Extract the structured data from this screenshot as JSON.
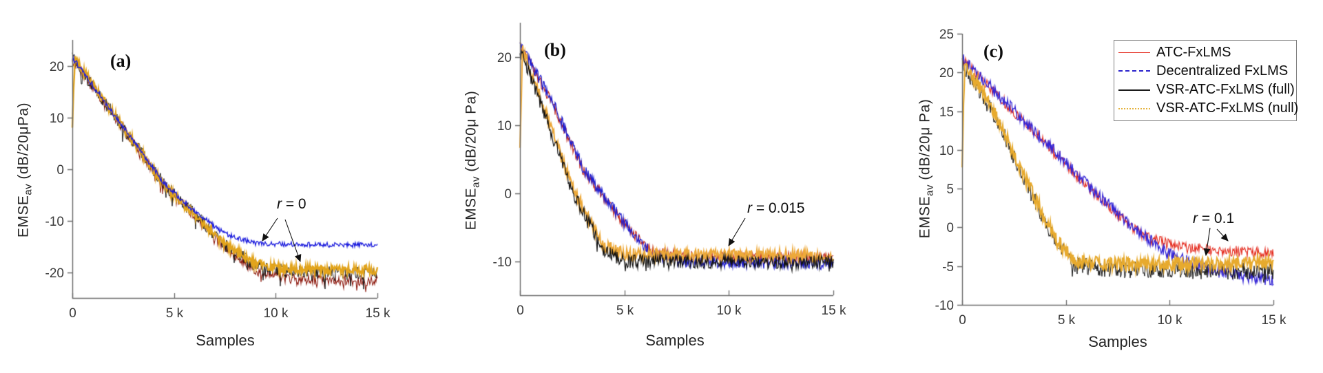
{
  "figure_title": "",
  "chart_data": [
    {
      "type": "line",
      "panel_label": "(a)",
      "xlabel": "Samples",
      "ylabel": "EMSE_av (dB/20μPa)",
      "ylabel_parts": {
        "base": "EMSE",
        "sub": "av",
        "units": " (dB/20μPa)"
      },
      "xlim": [
        0,
        15000
      ],
      "ylim": [
        -25,
        25
      ],
      "x_ticks": [
        {
          "v": 0,
          "label": "0"
        },
        {
          "v": 5000,
          "label": "5 k"
        },
        {
          "v": 10000,
          "label": "10 k"
        },
        {
          "v": 15000,
          "label": "15 k"
        }
      ],
      "y_ticks": [
        {
          "v": 20,
          "label": "20"
        },
        {
          "v": 10,
          "label": "10"
        },
        {
          "v": 0,
          "label": "0"
        },
        {
          "v": -10,
          "label": "-10"
        },
        {
          "v": -20,
          "label": "-20"
        }
      ],
      "annotation": {
        "var": "r",
        "rest": " = 0",
        "full": "r = 0",
        "r_value": 0
      },
      "series": [
        {
          "name": "ATC-FxLMS",
          "color": "#8e1b10",
          "width": 1.1,
          "noise_db": 1.0,
          "spike_db": 1.6,
          "spike_prob": 0.1,
          "z": 1,
          "points": [
            [
              0,
              21.4
            ],
            [
              4500,
              -3.0
            ],
            [
              6000,
              -9.0
            ],
            [
              7500,
              -15.2
            ],
            [
              9000,
              -19.6
            ],
            [
              10500,
              -21.3
            ],
            [
              15000,
              -21.7
            ]
          ]
        },
        {
          "name": "VSR-ATC-FxLMS (full)",
          "color": "#151515",
          "width": 1.0,
          "noise_db": 1.3,
          "spike_db": 2.6,
          "spike_prob": 0.08,
          "z": 2,
          "points": [
            [
              0,
              21.6
            ],
            [
              4500,
              -2.9
            ],
            [
              6000,
              -8.7
            ],
            [
              7500,
              -14.8
            ],
            [
              9000,
              -18.7
            ],
            [
              10500,
              -19.9
            ],
            [
              15000,
              -20.2
            ]
          ]
        },
        {
          "name": "VSR-ATC-FxLMS (null)",
          "color": "#e2a41c",
          "width": 2.4,
          "noise_db": 0.9,
          "spike_db": 0,
          "spike_prob": 0,
          "z": 3,
          "points": [
            [
              0,
              8.0
            ],
            [
              120,
              21.3
            ],
            [
              4500,
              -3.1
            ],
            [
              6000,
              -8.9
            ],
            [
              7500,
              -14.6
            ],
            [
              9000,
              -18.3
            ],
            [
              10500,
              -19.4
            ],
            [
              15000,
              -19.6
            ]
          ]
        },
        {
          "name": "Decentralized FxLMS",
          "color": "#1d1ddd",
          "width": 1.3,
          "noise_db": 0.5,
          "spike_db": 0,
          "spike_prob": 0,
          "z": 4,
          "points": [
            [
              0,
              21.6
            ],
            [
              4500,
              -2.7
            ],
            [
              6000,
              -8.2
            ],
            [
              7500,
              -12.6
            ],
            [
              9000,
              -14.5
            ],
            [
              15000,
              -14.8
            ]
          ]
        }
      ]
    },
    {
      "type": "line",
      "panel_label": "(b)",
      "xlabel": "Samples",
      "ylabel": "EMSE_av (dB/20μ Pa)",
      "ylabel_parts": {
        "base": "EMSE",
        "sub": "av",
        "units": " (dB/20μ Pa)"
      },
      "xlim": [
        0,
        15000
      ],
      "ylim": [
        -15,
        25
      ],
      "x_ticks": [
        {
          "v": 0,
          "label": "0"
        },
        {
          "v": 5000,
          "label": "5 k"
        },
        {
          "v": 10000,
          "label": "10 k"
        },
        {
          "v": 15000,
          "label": "15 k"
        }
      ],
      "y_ticks": [
        {
          "v": 20,
          "label": "20"
        },
        {
          "v": 10,
          "label": "10"
        },
        {
          "v": 0,
          "label": "0"
        },
        {
          "v": -10,
          "label": "-10"
        }
      ],
      "annotation": {
        "var": "r",
        "rest": " = 0.015",
        "full": "r = 0.015",
        "r_value": 0.015
      },
      "series": [
        {
          "name": "ATC-FxLMS",
          "color": "#bf2318",
          "width": 1.1,
          "noise_db": 0.8,
          "spike_db": 0,
          "spike_prob": 0,
          "z": 1,
          "points": [
            [
              0,
              21.6
            ],
            [
              1500,
              13.5
            ],
            [
              3000,
              3.5
            ],
            [
              5000,
              -4.6
            ],
            [
              6300,
              -8.6
            ],
            [
              8000,
              -9.3
            ],
            [
              15000,
              -9.5
            ]
          ]
        },
        {
          "name": "Decentralized FxLMS",
          "color": "#2220cf",
          "width": 1.3,
          "noise_db": 0.85,
          "spike_db": 0,
          "spike_prob": 0,
          "z": 2,
          "points": [
            [
              0,
              21.8
            ],
            [
              1500,
              13.7
            ],
            [
              3000,
              3.8
            ],
            [
              5000,
              -4.4
            ],
            [
              6300,
              -8.9
            ],
            [
              8000,
              -10.1
            ],
            [
              15000,
              -10.4
            ]
          ]
        },
        {
          "name": "VSR-ATC-FxLMS (null)",
          "color": "#eda93a",
          "width": 2.2,
          "noise_db": 0.9,
          "spike_db": 0,
          "spike_prob": 0,
          "z": 3,
          "points": [
            [
              0,
              7.0
            ],
            [
              120,
              21.2
            ],
            [
              1000,
              13.8
            ],
            [
              2500,
              0.8
            ],
            [
              4000,
              -7.6
            ],
            [
              5000,
              -9.0
            ],
            [
              15000,
              -9.2
            ]
          ]
        },
        {
          "name": "VSR-ATC-FxLMS (full)",
          "color": "#101010",
          "width": 1.2,
          "noise_db": 1.0,
          "spike_db": 1.2,
          "spike_prob": 0.05,
          "z": 4,
          "points": [
            [
              0,
              21.3
            ],
            [
              1000,
              13.2
            ],
            [
              2500,
              0.2
            ],
            [
              4000,
              -8.4
            ],
            [
              5000,
              -10.0
            ],
            [
              15000,
              -10.2
            ]
          ]
        }
      ]
    },
    {
      "type": "line",
      "panel_label": "(c)",
      "xlabel": "Samples",
      "ylabel": "EMSE_av (dB/20μ Pa)",
      "ylabel_parts": {
        "base": "EMSE",
        "sub": "av",
        "units": " (dB/20μ Pa)"
      },
      "xlim": [
        0,
        15000
      ],
      "ylim": [
        -10,
        25
      ],
      "x_ticks": [
        {
          "v": 0,
          "label": "0"
        },
        {
          "v": 5000,
          "label": "5 k"
        },
        {
          "v": 10000,
          "label": "10 k"
        },
        {
          "v": 15000,
          "label": "15 k"
        }
      ],
      "y_ticks": [
        {
          "v": 25,
          "label": "25"
        },
        {
          "v": 20,
          "label": "20"
        },
        {
          "v": 15,
          "label": "15"
        },
        {
          "v": 10,
          "label": "10"
        },
        {
          "v": 5,
          "label": "5"
        },
        {
          "v": 0,
          "label": "0"
        },
        {
          "v": -5,
          "label": "-5"
        },
        {
          "v": -10,
          "label": "-10"
        }
      ],
      "annotation": {
        "var": "r",
        "rest": " = 0.1",
        "full": "r = 0.1",
        "r_value": 0.1
      },
      "legend": {
        "position": "top-right",
        "entries": [
          {
            "label": "ATC-FxLMS",
            "color": "#e42a1d",
            "style": "solid",
            "thickness": 1
          },
          {
            "label": "Decentralized FxLMS",
            "color": "#2a22cc",
            "style": "dashed",
            "thickness": 2
          },
          {
            "label": "VSR-ATC-FxLMS (full)",
            "color": "#1a1a1a",
            "style": "solid",
            "thickness": 2
          },
          {
            "label": "VSR-ATC-FxLMS (null)",
            "color": "#e4b23c",
            "style": "dotted",
            "thickness": 2
          }
        ]
      },
      "series": [
        {
          "name": "ATC-FxLMS",
          "color": "#e42a1d",
          "width": 1.1,
          "noise_db": 0.7,
          "spike_db": 0,
          "spike_prob": 0,
          "z": 1,
          "points": [
            [
              0,
              21.6
            ],
            [
              2000,
              16.2
            ],
            [
              4000,
              10.9
            ],
            [
              6000,
              5.4
            ],
            [
              8000,
              0.4
            ],
            [
              9000,
              -1.4
            ],
            [
              10500,
              -2.6
            ],
            [
              12000,
              -2.9
            ],
            [
              15000,
              -3.3
            ]
          ]
        },
        {
          "name": "Decentralized FxLMS",
          "color": "#3526d6",
          "width": 1.3,
          "noise_db": 0.8,
          "spike_db": 0,
          "spike_prob": 0,
          "z": 2,
          "points": [
            [
              0,
              21.9
            ],
            [
              2000,
              16.4
            ],
            [
              4000,
              11.1
            ],
            [
              6000,
              5.6
            ],
            [
              8000,
              0.6
            ],
            [
              9000,
              -1.6
            ],
            [
              10000,
              -3.4
            ],
            [
              11500,
              -5.2
            ],
            [
              13500,
              -6.3
            ],
            [
              15000,
              -7.0
            ]
          ]
        },
        {
          "name": "VSR-ATC-FxLMS (full)",
          "color": "#131313",
          "width": 1.0,
          "noise_db": 1.1,
          "spike_db": 1.4,
          "spike_prob": 0.06,
          "z": 3,
          "points": [
            [
              0,
              21.2
            ],
            [
              1500,
              14.8
            ],
            [
              3000,
              6.2
            ],
            [
              4500,
              -1.9
            ],
            [
              5500,
              -4.9
            ],
            [
              7000,
              -5.4
            ],
            [
              15000,
              -5.7
            ]
          ]
        },
        {
          "name": "VSR-ATC-FxLMS (null)",
          "color": "#e7aa2e",
          "width": 2.2,
          "noise_db": 0.9,
          "spike_db": 0,
          "spike_prob": 0,
          "z": 4,
          "points": [
            [
              0,
              7.5
            ],
            [
              120,
              21.1
            ],
            [
              1500,
              15.2
            ],
            [
              3000,
              6.6
            ],
            [
              4500,
              -1.5
            ],
            [
              5500,
              -4.4
            ],
            [
              7000,
              -4.8
            ],
            [
              15000,
              -4.6
            ]
          ]
        }
      ]
    }
  ]
}
